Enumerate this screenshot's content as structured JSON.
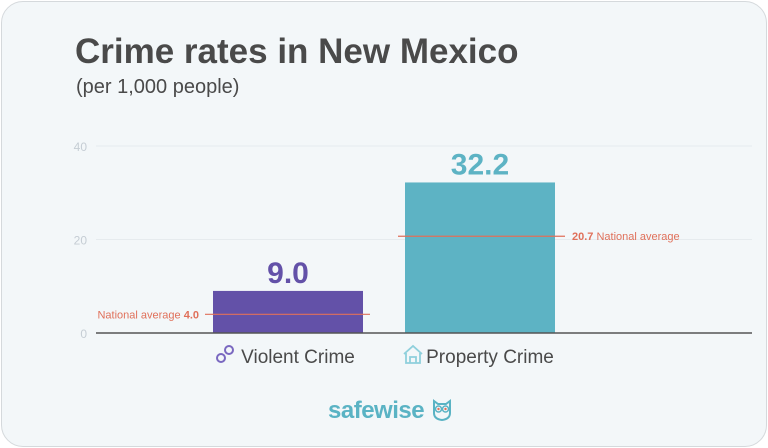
{
  "chart_data": {
    "type": "bar",
    "title": "Crime rates in New Mexico",
    "subtitle": "(per 1,000 people)",
    "categories": [
      "Violent Crime",
      "Property Crime"
    ],
    "category_icons": [
      "handcuffs-icon",
      "house-icon"
    ],
    "values": [
      9.0,
      32.2
    ],
    "value_labels": [
      "9.0",
      "32.2"
    ],
    "colors": [
      "#6351a8",
      "#5db3c4"
    ],
    "ylim": [
      0,
      40
    ],
    "yticks": [
      0,
      20,
      40
    ],
    "grid": true,
    "reference_lines": [
      {
        "category": "Violent Crime",
        "value": 4.0,
        "label_text": "National average ",
        "label_value": "4.0",
        "label_side": "left"
      },
      {
        "category": "Property Crime",
        "value": 20.7,
        "label_text": " National average",
        "label_value": "20.7",
        "label_side": "right"
      }
    ],
    "reference_color": "#e0705a"
  },
  "brand": {
    "logo_text": "safewise"
  }
}
